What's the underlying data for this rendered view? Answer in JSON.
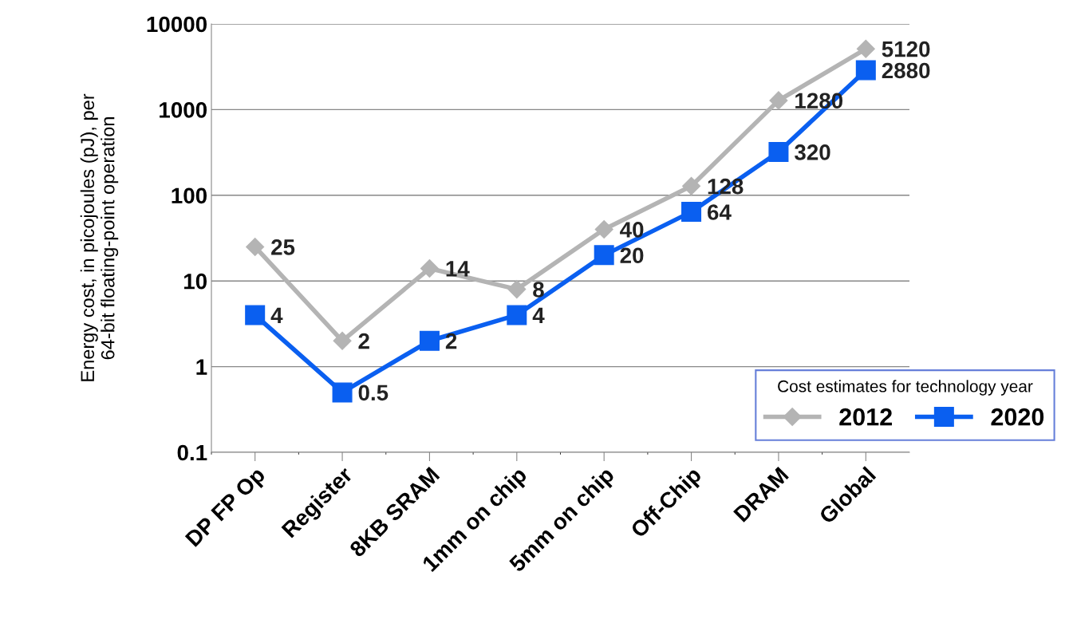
{
  "chart_data": {
    "type": "line",
    "ylabel": "Energy cost, in picojoules (pJ), per\n64-bit floating-point operation",
    "legend_title": "Cost estimates for technology year",
    "categories": [
      "DP FP Op",
      "Register",
      "8KB SRAM",
      "1mm on chip",
      "5mm on chip",
      "Off-Chip",
      "DRAM",
      "Global"
    ],
    "series": [
      {
        "name": "2012",
        "color": "#b4b4b4",
        "marker": "diamond",
        "values": [
          25,
          2,
          14,
          8,
          40,
          128,
          1280,
          5120
        ]
      },
      {
        "name": "2020",
        "color": "#0a5ff0",
        "marker": "square",
        "values": [
          4,
          0.5,
          2,
          4,
          20,
          64,
          320,
          2880
        ]
      }
    ],
    "log": true,
    "ylim": [
      0.1,
      10000
    ],
    "yticks": [
      0.1,
      1,
      10,
      100,
      1000,
      10000
    ],
    "grid": "y",
    "legend": "bottom right",
    "data_labels": true,
    "line_style": "solid"
  }
}
